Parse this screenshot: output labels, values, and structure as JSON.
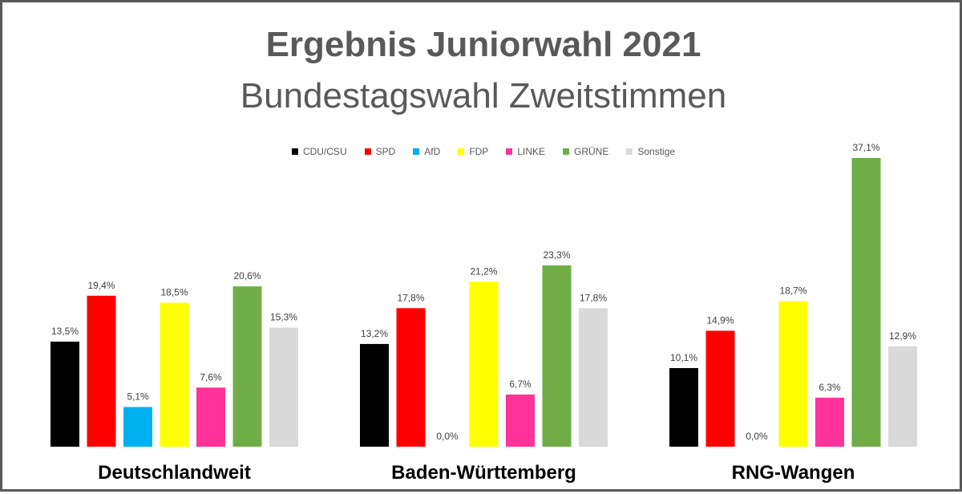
{
  "chart_data": {
    "type": "bar",
    "title": "Ergebnis Juniorwahl 2021",
    "subtitle": "Bundestagswahl Zweitstimmen",
    "ylim": [
      0,
      40
    ],
    "legend_position": "top",
    "grid": false,
    "series": [
      {
        "name": "CDU/CSU",
        "color": "#000000"
      },
      {
        "name": "SPD",
        "color": "#ff0000"
      },
      {
        "name": "AfD",
        "color": "#00b0f0"
      },
      {
        "name": "FDP",
        "color": "#ffff00"
      },
      {
        "name": "LINKE",
        "color": "#ff3399"
      },
      {
        "name": "GRÜNE",
        "color": "#70ad47"
      },
      {
        "name": "Sonstige",
        "color": "#d9d9d9"
      }
    ],
    "groups": [
      {
        "label": "Deutschlandweit",
        "values": [
          13.5,
          19.4,
          5.1,
          18.5,
          7.6,
          20.6,
          15.3
        ],
        "value_labels": [
          "13,5%",
          "19,4%",
          "5,1%",
          "18,5%",
          "7,6%",
          "20,6%",
          "15,3%"
        ]
      },
      {
        "label": "Baden-Württemberg",
        "values": [
          13.2,
          17.8,
          0.0,
          21.2,
          6.7,
          23.3,
          17.8
        ],
        "value_labels": [
          "13,2%",
          "17,8%",
          "0,0%",
          "21,2%",
          "6,7%",
          "23,3%",
          "17,8%"
        ]
      },
      {
        "label": "RNG-Wangen",
        "values": [
          10.1,
          14.9,
          0.0,
          18.7,
          6.3,
          37.1,
          12.9
        ],
        "value_labels": [
          "10,1%",
          "14,9%",
          "0,0%",
          "18,7%",
          "6,3%",
          "37,1%",
          "12,9%"
        ]
      }
    ]
  }
}
